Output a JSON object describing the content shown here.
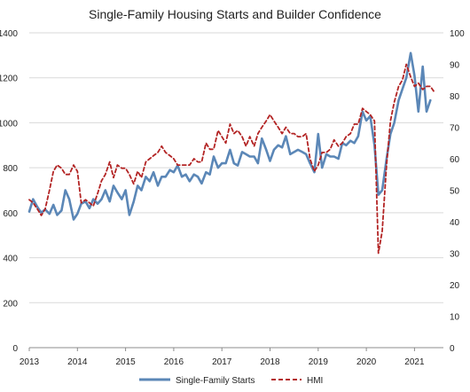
{
  "chart_data": {
    "type": "line",
    "title": "Single-Family Housing Starts and Builder Confidence",
    "x_range": [
      2013.0,
      2021.6
    ],
    "x_ticks": [
      2013,
      2014,
      2015,
      2016,
      2017,
      2018,
      2019,
      2020,
      2021
    ],
    "x_tick_labels": [
      "2013",
      "2014",
      "2015",
      "2016",
      "2017",
      "2018",
      "2019",
      "2020",
      "2021"
    ],
    "y_left": {
      "range": [
        0,
        1400
      ],
      "ticks": [
        0,
        200,
        400,
        600,
        800,
        1000,
        1200,
        1400
      ],
      "tick_labels": [
        "0",
        "200",
        "400",
        "600",
        "800",
        "1000",
        "1200",
        "1400"
      ]
    },
    "y_right": {
      "range": [
        0,
        100
      ],
      "ticks": [
        0,
        10,
        20,
        30,
        40,
        50,
        60,
        70,
        80,
        90,
        100
      ],
      "tick_labels": [
        "0",
        "10",
        "20",
        "30",
        "40",
        "50",
        "60",
        "70",
        "80",
        "90",
        "100"
      ]
    },
    "grid": "horizontal",
    "legend_position": "bottom",
    "series": [
      {
        "name": "Single-Family Starts",
        "axis": "left",
        "color": "#5b87b7",
        "style": "solid",
        "points": [
          [
            2013.0,
            605
          ],
          [
            2013.08,
            660
          ],
          [
            2013.17,
            625
          ],
          [
            2013.25,
            600
          ],
          [
            2013.33,
            615
          ],
          [
            2013.42,
            595
          ],
          [
            2013.5,
            635
          ],
          [
            2013.58,
            590
          ],
          [
            2013.67,
            610
          ],
          [
            2013.75,
            700
          ],
          [
            2013.83,
            660
          ],
          [
            2013.92,
            570
          ],
          [
            2014.0,
            595
          ],
          [
            2014.08,
            640
          ],
          [
            2014.17,
            650
          ],
          [
            2014.25,
            620
          ],
          [
            2014.33,
            660
          ],
          [
            2014.42,
            640
          ],
          [
            2014.5,
            660
          ],
          [
            2014.58,
            700
          ],
          [
            2014.67,
            650
          ],
          [
            2014.75,
            720
          ],
          [
            2014.83,
            690
          ],
          [
            2014.92,
            660
          ],
          [
            2015.0,
            700
          ],
          [
            2015.08,
            590
          ],
          [
            2015.17,
            650
          ],
          [
            2015.25,
            720
          ],
          [
            2015.33,
            700
          ],
          [
            2015.42,
            760
          ],
          [
            2015.5,
            740
          ],
          [
            2015.58,
            780
          ],
          [
            2015.67,
            720
          ],
          [
            2015.75,
            760
          ],
          [
            2015.83,
            760
          ],
          [
            2015.92,
            790
          ],
          [
            2016.0,
            780
          ],
          [
            2016.08,
            810
          ],
          [
            2016.17,
            760
          ],
          [
            2016.25,
            770
          ],
          [
            2016.33,
            740
          ],
          [
            2016.42,
            770
          ],
          [
            2016.5,
            760
          ],
          [
            2016.58,
            730
          ],
          [
            2016.67,
            780
          ],
          [
            2016.75,
            770
          ],
          [
            2016.83,
            850
          ],
          [
            2016.92,
            800
          ],
          [
            2017.0,
            820
          ],
          [
            2017.08,
            820
          ],
          [
            2017.17,
            880
          ],
          [
            2017.25,
            820
          ],
          [
            2017.33,
            810
          ],
          [
            2017.42,
            870
          ],
          [
            2017.5,
            860
          ],
          [
            2017.58,
            850
          ],
          [
            2017.67,
            850
          ],
          [
            2017.75,
            820
          ],
          [
            2017.83,
            930
          ],
          [
            2017.92,
            880
          ],
          [
            2018.0,
            830
          ],
          [
            2018.08,
            880
          ],
          [
            2018.17,
            900
          ],
          [
            2018.25,
            890
          ],
          [
            2018.33,
            940
          ],
          [
            2018.42,
            860
          ],
          [
            2018.5,
            870
          ],
          [
            2018.58,
            880
          ],
          [
            2018.67,
            870
          ],
          [
            2018.75,
            860
          ],
          [
            2018.83,
            820
          ],
          [
            2018.92,
            780
          ],
          [
            2019.0,
            950
          ],
          [
            2019.08,
            800
          ],
          [
            2019.17,
            860
          ],
          [
            2019.25,
            850
          ],
          [
            2019.33,
            850
          ],
          [
            2019.42,
            840
          ],
          [
            2019.5,
            910
          ],
          [
            2019.58,
            900
          ],
          [
            2019.67,
            920
          ],
          [
            2019.75,
            910
          ],
          [
            2019.83,
            940
          ],
          [
            2019.92,
            1050
          ],
          [
            2020.0,
            1010
          ],
          [
            2020.08,
            1030
          ],
          [
            2020.17,
            900
          ],
          [
            2020.25,
            680
          ],
          [
            2020.33,
            700
          ],
          [
            2020.42,
            840
          ],
          [
            2020.5,
            950
          ],
          [
            2020.58,
            1000
          ],
          [
            2020.67,
            1100
          ],
          [
            2020.75,
            1150
          ],
          [
            2020.83,
            1200
          ],
          [
            2020.92,
            1310
          ],
          [
            2021.0,
            1210
          ],
          [
            2021.08,
            1050
          ],
          [
            2021.17,
            1250
          ],
          [
            2021.25,
            1050
          ],
          [
            2021.33,
            1100
          ]
        ]
      },
      {
        "name": "HMI",
        "axis": "right",
        "color": "#b32424",
        "style": "dashed",
        "points": [
          [
            2013.0,
            47
          ],
          [
            2013.08,
            46
          ],
          [
            2013.17,
            44
          ],
          [
            2013.25,
            42
          ],
          [
            2013.33,
            44
          ],
          [
            2013.42,
            50
          ],
          [
            2013.5,
            56
          ],
          [
            2013.58,
            58
          ],
          [
            2013.67,
            57
          ],
          [
            2013.75,
            55
          ],
          [
            2013.83,
            55
          ],
          [
            2013.92,
            58
          ],
          [
            2014.0,
            56
          ],
          [
            2014.08,
            46
          ],
          [
            2014.17,
            47
          ],
          [
            2014.25,
            46
          ],
          [
            2014.33,
            45
          ],
          [
            2014.42,
            49
          ],
          [
            2014.5,
            53
          ],
          [
            2014.58,
            55
          ],
          [
            2014.67,
            59
          ],
          [
            2014.75,
            54
          ],
          [
            2014.83,
            58
          ],
          [
            2014.92,
            57
          ],
          [
            2015.0,
            57
          ],
          [
            2015.08,
            55
          ],
          [
            2015.17,
            52
          ],
          [
            2015.25,
            56
          ],
          [
            2015.33,
            54
          ],
          [
            2015.42,
            59
          ],
          [
            2015.5,
            60
          ],
          [
            2015.58,
            61
          ],
          [
            2015.67,
            62
          ],
          [
            2015.75,
            64
          ],
          [
            2015.83,
            62
          ],
          [
            2015.92,
            61
          ],
          [
            2016.0,
            60
          ],
          [
            2016.08,
            58
          ],
          [
            2016.17,
            58
          ],
          [
            2016.25,
            58
          ],
          [
            2016.33,
            58
          ],
          [
            2016.42,
            60
          ],
          [
            2016.5,
            59
          ],
          [
            2016.58,
            59
          ],
          [
            2016.67,
            65
          ],
          [
            2016.75,
            63
          ],
          [
            2016.83,
            63
          ],
          [
            2016.92,
            69
          ],
          [
            2017.0,
            67
          ],
          [
            2017.08,
            65
          ],
          [
            2017.17,
            71
          ],
          [
            2017.25,
            68
          ],
          [
            2017.33,
            69
          ],
          [
            2017.42,
            67
          ],
          [
            2017.5,
            64
          ],
          [
            2017.58,
            67
          ],
          [
            2017.67,
            64
          ],
          [
            2017.75,
            68
          ],
          [
            2017.83,
            70
          ],
          [
            2017.92,
            72
          ],
          [
            2018.0,
            74
          ],
          [
            2018.08,
            72
          ],
          [
            2018.17,
            70
          ],
          [
            2018.25,
            68
          ],
          [
            2018.33,
            70
          ],
          [
            2018.42,
            68
          ],
          [
            2018.5,
            68
          ],
          [
            2018.58,
            67
          ],
          [
            2018.67,
            67
          ],
          [
            2018.75,
            68
          ],
          [
            2018.83,
            60
          ],
          [
            2018.92,
            56
          ],
          [
            2019.0,
            58
          ],
          [
            2019.08,
            62
          ],
          [
            2019.17,
            62
          ],
          [
            2019.25,
            63
          ],
          [
            2019.33,
            66
          ],
          [
            2019.42,
            64
          ],
          [
            2019.5,
            65
          ],
          [
            2019.58,
            67
          ],
          [
            2019.67,
            68
          ],
          [
            2019.75,
            71
          ],
          [
            2019.83,
            71
          ],
          [
            2019.92,
            76
          ],
          [
            2020.0,
            75
          ],
          [
            2020.08,
            74
          ],
          [
            2020.17,
            72
          ],
          [
            2020.25,
            30
          ],
          [
            2020.33,
            37
          ],
          [
            2020.42,
            58
          ],
          [
            2020.5,
            72
          ],
          [
            2020.58,
            78
          ],
          [
            2020.67,
            83
          ],
          [
            2020.75,
            85
          ],
          [
            2020.83,
            90
          ],
          [
            2020.92,
            86
          ],
          [
            2021.0,
            83
          ],
          [
            2021.08,
            84
          ],
          [
            2021.17,
            82
          ],
          [
            2021.25,
            83
          ],
          [
            2021.33,
            83
          ],
          [
            2021.42,
            81
          ]
        ]
      }
    ]
  }
}
